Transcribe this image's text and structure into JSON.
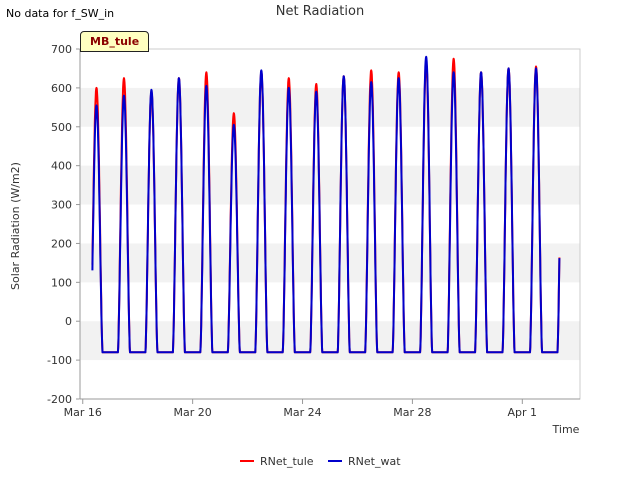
{
  "header": {
    "nodata_text": "No data for f_SW_in",
    "site_badge": "MB_tule"
  },
  "chart_data": {
    "type": "line",
    "title": "Net Radiation",
    "xlabel": "Time",
    "ylabel": "Solar Radiation (W/m2)",
    "ylim": [
      -200,
      700
    ],
    "yticks": [
      -200,
      -100,
      0,
      100,
      200,
      300,
      400,
      500,
      600,
      700
    ],
    "xlim_days": [
      -0.1,
      18.1
    ],
    "xticks": [
      {
        "day": 0,
        "label": "Mar 16"
      },
      {
        "day": 4,
        "label": "Mar 20"
      },
      {
        "day": 8,
        "label": "Mar 24"
      },
      {
        "day": 12,
        "label": "Mar 28"
      },
      {
        "day": 16,
        "label": "Apr 1"
      }
    ],
    "grid": "horizontal-bands",
    "legend_position": "bottom-center",
    "series": [
      {
        "name": "RNet_tule",
        "color": "#ff0000",
        "start_day": 0.35,
        "end_day": 17.35,
        "night_value": -80,
        "daily_peaks": [
          600,
          625,
          590,
          625,
          640,
          535,
          640,
          625,
          610,
          630,
          645,
          640,
          665,
          675,
          640,
          650,
          655
        ]
      },
      {
        "name": "RNet_wat",
        "color": "#0000cc",
        "start_day": 0.35,
        "end_day": 17.35,
        "night_value": -80,
        "daily_peaks": [
          555,
          580,
          595,
          625,
          605,
          505,
          645,
          600,
          590,
          630,
          615,
          625,
          680,
          640,
          640,
          650,
          650
        ]
      }
    ]
  }
}
